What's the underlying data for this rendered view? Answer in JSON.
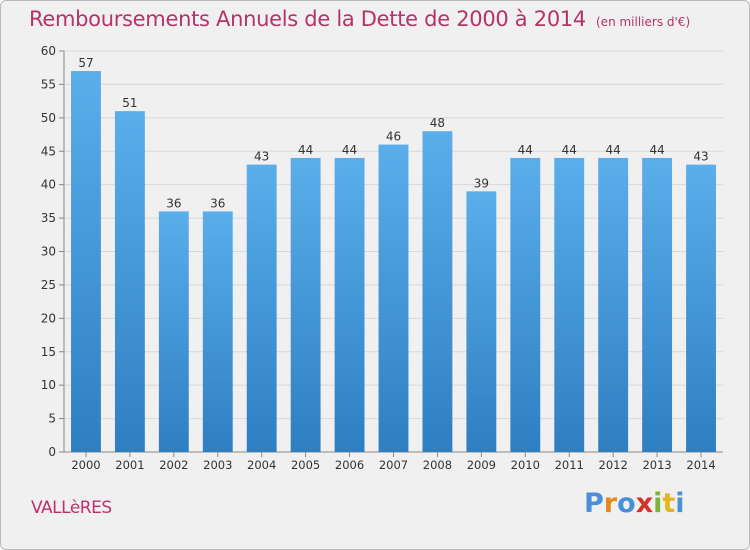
{
  "chart_data": {
    "type": "bar",
    "title": "Remboursements Annuels de la Dette de 2000 à 2014",
    "unit_label": "(en milliers d'€)",
    "categories": [
      "2000",
      "2001",
      "2002",
      "2003",
      "2004",
      "2005",
      "2006",
      "2007",
      "2008",
      "2009",
      "2010",
      "2011",
      "2012",
      "2013",
      "2014"
    ],
    "values": [
      57,
      51,
      36,
      36,
      43,
      44,
      44,
      46,
      48,
      39,
      44,
      44,
      44,
      44,
      43
    ],
    "ylim": [
      0,
      60
    ],
    "yticks": [
      0,
      5,
      10,
      15,
      20,
      25,
      30,
      35,
      40,
      45,
      50,
      55,
      60
    ],
    "xlabel": "",
    "ylabel": "",
    "grid": true,
    "bar_color_top": "#5aaeea",
    "bar_color_bottom": "#2e7fc2"
  },
  "commune": "VALLèRES",
  "logo": {
    "letters": [
      "P",
      "r",
      "o",
      "x",
      "i",
      "t",
      "i"
    ],
    "colors": [
      "#4a8fd8",
      "#e58a1f",
      "#4a8fd8",
      "#d6322a",
      "#7cb33a",
      "#e5b51f",
      "#4a8fd8"
    ]
  }
}
